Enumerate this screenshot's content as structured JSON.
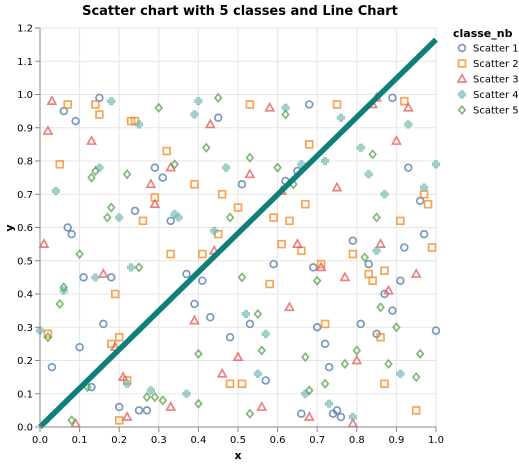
{
  "chart_data": {
    "type": "scatter",
    "title": "Scatter chart with 5 classes and Line Chart",
    "xlabel": "x",
    "ylabel": "y",
    "xlim": [
      0,
      1
    ],
    "ylim": [
      0,
      1.2
    ],
    "x_ticks": [
      "0.0",
      "0.1",
      "0.2",
      "0.3",
      "0.4",
      "0.5",
      "0.6",
      "0.7",
      "0.8",
      "0.9",
      "1.0"
    ],
    "y_ticks": [
      "0.0",
      "0.1",
      "0.2",
      "0.3",
      "0.4",
      "0.5",
      "0.6",
      "0.7",
      "0.8",
      "0.9",
      "1.0",
      "1.1",
      "1.2"
    ],
    "grid": true,
    "legend": {
      "title": "classe_nb",
      "placement": "right"
    },
    "line": {
      "x": [
        0,
        1
      ],
      "y": [
        0,
        1.165
      ],
      "color": "#0f7f7a"
    },
    "series": [
      {
        "name": "Scatter 1",
        "shape": "circle",
        "color": "#4c78a8",
        "points": [
          [
            0.03,
            0.18
          ],
          [
            0.06,
            0.95
          ],
          [
            0.07,
            0.6
          ],
          [
            0.08,
            0.58
          ],
          [
            0.09,
            0.92
          ],
          [
            0.1,
            0.24
          ],
          [
            0.11,
            0.45
          ],
          [
            0.13,
            0.12
          ],
          [
            0.15,
            0.99
          ],
          [
            0.16,
            0.31
          ],
          [
            0.18,
            0.45
          ],
          [
            0.2,
            0.06
          ],
          [
            0.24,
            0.65
          ],
          [
            0.25,
            0.05
          ],
          [
            0.27,
            0.05
          ],
          [
            0.29,
            0.78
          ],
          [
            0.31,
            0.75
          ],
          [
            0.33,
            0.62
          ],
          [
            0.37,
            0.46
          ],
          [
            0.39,
            0.37
          ],
          [
            0.41,
            0.44
          ],
          [
            0.43,
            0.33
          ],
          [
            0.45,
            0.93
          ],
          [
            0.48,
            0.27
          ],
          [
            0.51,
            0.73
          ],
          [
            0.53,
            0.31
          ],
          [
            0.57,
            0.14
          ],
          [
            0.59,
            0.49
          ],
          [
            0.62,
            0.74
          ],
          [
            0.65,
            0.77
          ],
          [
            0.66,
            0.04
          ],
          [
            0.68,
            0.97
          ],
          [
            0.69,
            0.48
          ],
          [
            0.7,
            0.3
          ],
          [
            0.72,
            0.25
          ],
          [
            0.73,
            0.18
          ],
          [
            0.74,
            0.04
          ],
          [
            0.75,
            0.05
          ],
          [
            0.76,
            0.03
          ],
          [
            0.79,
            0.56
          ],
          [
            0.81,
            0.31
          ],
          [
            0.83,
            0.49
          ],
          [
            0.85,
            0.28
          ],
          [
            0.87,
            0.4
          ],
          [
            0.89,
            0.35
          ],
          [
            0.91,
            0.44
          ],
          [
            0.92,
            0.54
          ],
          [
            0.96,
            0.68
          ],
          [
            0.97,
            0.58
          ],
          [
            1.0,
            0.29
          ],
          [
            0.89,
            0.99
          ],
          [
            0.93,
            0.78
          ]
        ]
      },
      {
        "name": "Scatter 2",
        "shape": "square",
        "color": "#f58518",
        "points": [
          [
            0.02,
            0.28
          ],
          [
            0.05,
            0.79
          ],
          [
            0.07,
            0.97
          ],
          [
            0.14,
            0.97
          ],
          [
            0.15,
            0.94
          ],
          [
            0.18,
            0.25
          ],
          [
            0.19,
            0.4
          ],
          [
            0.2,
            0.27
          ],
          [
            0.22,
            0.14
          ],
          [
            0.23,
            0.92
          ],
          [
            0.24,
            0.92
          ],
          [
            0.26,
            0.62
          ],
          [
            0.29,
            0.69
          ],
          [
            0.32,
            0.83
          ],
          [
            0.33,
            0.52
          ],
          [
            0.39,
            0.73
          ],
          [
            0.41,
            0.52
          ],
          [
            0.45,
            0.58
          ],
          [
            0.46,
            0.7
          ],
          [
            0.48,
            0.13
          ],
          [
            0.5,
            0.66
          ],
          [
            0.51,
            0.13
          ],
          [
            0.53,
            0.97
          ],
          [
            0.58,
            0.43
          ],
          [
            0.59,
            0.63
          ],
          [
            0.61,
            0.55
          ],
          [
            0.63,
            0.62
          ],
          [
            0.66,
            0.53
          ],
          [
            0.67,
            0.67
          ],
          [
            0.68,
            0.85
          ],
          [
            0.71,
            0.49
          ],
          [
            0.72,
            0.31
          ],
          [
            0.75,
            0.97
          ],
          [
            0.79,
            0.52
          ],
          [
            0.83,
            0.46
          ],
          [
            0.84,
            0.44
          ],
          [
            0.86,
            0.27
          ],
          [
            0.87,
            0.13
          ],
          [
            0.91,
            0.62
          ],
          [
            0.92,
            0.98
          ],
          [
            0.97,
            0.7
          ],
          [
            0.98,
            0.67
          ],
          [
            0.99,
            0.54
          ],
          [
            0.95,
            0.05
          ],
          [
            0.87,
            0.47
          ],
          [
            0.2,
            0.02
          ]
        ]
      },
      {
        "name": "Scatter 3",
        "shape": "triangle",
        "color": "#e45756",
        "points": [
          [
            0.01,
            0.55
          ],
          [
            0.02,
            0.89
          ],
          [
            0.03,
            0.98
          ],
          [
            0.09,
            0.01
          ],
          [
            0.13,
            0.86
          ],
          [
            0.16,
            0.46
          ],
          [
            0.19,
            0.24
          ],
          [
            0.21,
            0.15
          ],
          [
            0.22,
            0.03
          ],
          [
            0.28,
            0.73
          ],
          [
            0.29,
            0.67
          ],
          [
            0.33,
            0.78
          ],
          [
            0.39,
            0.32
          ],
          [
            0.44,
            0.53
          ],
          [
            0.46,
            0.16
          ],
          [
            0.5,
            0.21
          ],
          [
            0.53,
            0.76
          ],
          [
            0.56,
            0.06
          ],
          [
            0.58,
            0.96
          ],
          [
            0.61,
            0.71
          ],
          [
            0.63,
            0.36
          ],
          [
            0.65,
            0.55
          ],
          [
            0.68,
            0.03
          ],
          [
            0.71,
            0.48
          ],
          [
            0.77,
            0.45
          ],
          [
            0.79,
            0.01
          ],
          [
            0.8,
            0.2
          ],
          [
            0.84,
            0.97
          ],
          [
            0.85,
            0.99
          ],
          [
            0.86,
            0.55
          ],
          [
            0.88,
            0.41
          ],
          [
            0.9,
            0.86
          ],
          [
            0.93,
            0.96
          ],
          [
            0.95,
            0.46
          ],
          [
            0.75,
            0.72
          ],
          [
            0.33,
            0.06
          ],
          [
            0.43,
            0.91
          ]
        ]
      },
      {
        "name": "Scatter 4",
        "shape": "cross",
        "color": "#72b7b2",
        "points": [
          [
            0.0,
            0.29
          ],
          [
            0.04,
            0.71
          ],
          [
            0.06,
            0.41
          ],
          [
            0.14,
            0.45
          ],
          [
            0.15,
            0.78
          ],
          [
            0.18,
            0.98
          ],
          [
            0.2,
            0.63
          ],
          [
            0.23,
            0.48
          ],
          [
            0.25,
            0.91
          ],
          [
            0.28,
            0.11
          ],
          [
            0.34,
            0.64
          ],
          [
            0.35,
            0.63
          ],
          [
            0.37,
            0.1
          ],
          [
            0.39,
            0.94
          ],
          [
            0.4,
            0.98
          ],
          [
            0.44,
            0.59
          ],
          [
            0.47,
            0.78
          ],
          [
            0.52,
            0.34
          ],
          [
            0.55,
            0.16
          ],
          [
            0.57,
            0.28
          ],
          [
            0.62,
            0.96
          ],
          [
            0.66,
            0.79
          ],
          [
            0.72,
            0.8
          ],
          [
            0.76,
            0.93
          ],
          [
            0.79,
            0.03
          ],
          [
            0.81,
            0.84
          ],
          [
            0.83,
            0.76
          ],
          [
            0.87,
            0.7
          ],
          [
            0.91,
            0.16
          ],
          [
            0.93,
            0.91
          ],
          [
            0.97,
            0.72
          ],
          [
            1.0,
            0.79
          ],
          [
            0.85,
            0.53
          ],
          [
            0.73,
            0.07
          ],
          [
            0.67,
            0.1
          ],
          [
            0.22,
            0.13
          ]
        ]
      },
      {
        "name": "Scatter 5",
        "shape": "diamond",
        "color": "#54a24b",
        "points": [
          [
            0.02,
            0.27
          ],
          [
            0.05,
            0.37
          ],
          [
            0.06,
            0.42
          ],
          [
            0.08,
            0.02
          ],
          [
            0.1,
            0.52
          ],
          [
            0.12,
            0.12
          ],
          [
            0.13,
            0.75
          ],
          [
            0.14,
            0.77
          ],
          [
            0.17,
            0.63
          ],
          [
            0.18,
            0.66
          ],
          [
            0.22,
            0.76
          ],
          [
            0.25,
            0.48
          ],
          [
            0.27,
            0.09
          ],
          [
            0.29,
            0.09
          ],
          [
            0.3,
            0.96
          ],
          [
            0.31,
            0.08
          ],
          [
            0.34,
            0.79
          ],
          [
            0.4,
            0.22
          ],
          [
            0.42,
            0.84
          ],
          [
            0.45,
            0.99
          ],
          [
            0.48,
            0.63
          ],
          [
            0.51,
            0.45
          ],
          [
            0.53,
            0.81
          ],
          [
            0.55,
            0.34
          ],
          [
            0.56,
            0.23
          ],
          [
            0.6,
            0.78
          ],
          [
            0.62,
            0.94
          ],
          [
            0.64,
            0.73
          ],
          [
            0.67,
            0.21
          ],
          [
            0.68,
            0.11
          ],
          [
            0.7,
            0.44
          ],
          [
            0.72,
            0.13
          ],
          [
            0.77,
            0.19
          ],
          [
            0.8,
            0.23
          ],
          [
            0.82,
            0.51
          ],
          [
            0.84,
            0.82
          ],
          [
            0.85,
            0.63
          ],
          [
            0.86,
            0.36
          ],
          [
            0.88,
            0.19
          ],
          [
            0.9,
            0.3
          ],
          [
            0.95,
            0.15
          ],
          [
            0.96,
            0.22
          ],
          [
            0.53,
            0.04
          ],
          [
            0.4,
            0.07
          ]
        ]
      }
    ]
  }
}
